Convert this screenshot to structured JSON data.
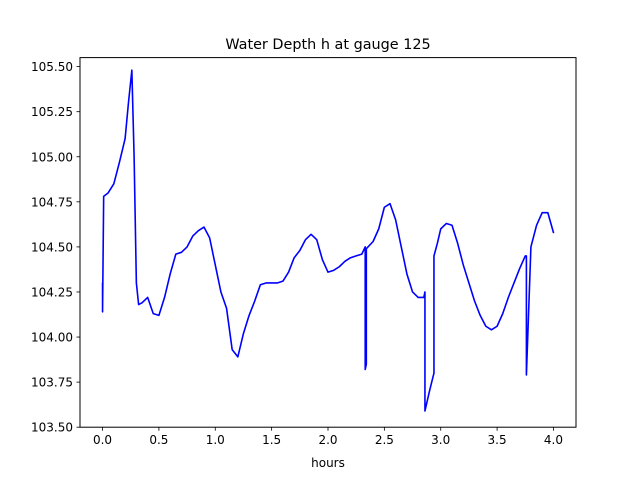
{
  "chart_data": {
    "type": "line",
    "title": "Water Depth h at gauge 125",
    "xlabel": "hours",
    "ylabel": "",
    "xlim": [
      -0.2,
      4.2
    ],
    "ylim": [
      103.5,
      105.55
    ],
    "xticks": [
      0.0,
      0.5,
      1.0,
      1.5,
      2.0,
      2.5,
      3.0,
      3.5,
      4.0
    ],
    "xtick_labels": [
      "0.0",
      "0.5",
      "1.0",
      "1.5",
      "2.0",
      "2.5",
      "3.0",
      "3.5",
      "4.0"
    ],
    "yticks": [
      103.5,
      103.75,
      104.0,
      104.25,
      104.5,
      104.75,
      105.0,
      105.25,
      105.5
    ],
    "ytick_labels": [
      "103.50",
      "103.75",
      "104.00",
      "104.25",
      "104.50",
      "104.75",
      "105.00",
      "105.25",
      "105.50"
    ],
    "grid": false,
    "series": [
      {
        "color": "#0000ff",
        "x": [
          0.0,
          0.0,
          0.01,
          0.05,
          0.1,
          0.15,
          0.2,
          0.23,
          0.26,
          0.28,
          0.3,
          0.32,
          0.35,
          0.4,
          0.45,
          0.5,
          0.55,
          0.6,
          0.65,
          0.7,
          0.75,
          0.8,
          0.85,
          0.9,
          0.95,
          1.0,
          1.05,
          1.1,
          1.15,
          1.2,
          1.25,
          1.3,
          1.35,
          1.4,
          1.45,
          1.5,
          1.55,
          1.6,
          1.65,
          1.7,
          1.75,
          1.8,
          1.85,
          1.9,
          1.95,
          2.0,
          2.05,
          2.1,
          2.15,
          2.2,
          2.25,
          2.3,
          2.33,
          2.33,
          2.34,
          2.34,
          2.4,
          2.45,
          2.5,
          2.55,
          2.6,
          2.65,
          2.7,
          2.75,
          2.8,
          2.85,
          2.86,
          2.86,
          2.9,
          2.94,
          2.94,
          2.97,
          3.0,
          3.05,
          3.1,
          3.15,
          3.2,
          3.25,
          3.3,
          3.35,
          3.4,
          3.45,
          3.5,
          3.55,
          3.6,
          3.65,
          3.7,
          3.75,
          3.76,
          3.76,
          3.8,
          3.85,
          3.9,
          3.95,
          4.0
        ],
        "y": [
          104.3,
          104.14,
          104.78,
          104.8,
          104.85,
          104.97,
          105.1,
          105.3,
          105.48,
          105.0,
          104.3,
          104.18,
          104.19,
          104.22,
          104.13,
          104.12,
          104.22,
          104.35,
          104.46,
          104.47,
          104.5,
          104.56,
          104.59,
          104.61,
          104.55,
          104.4,
          104.25,
          104.16,
          103.93,
          103.89,
          104.02,
          104.12,
          104.2,
          104.29,
          104.3,
          104.3,
          104.3,
          104.31,
          104.36,
          104.44,
          104.48,
          104.54,
          104.57,
          104.54,
          104.43,
          104.36,
          104.37,
          104.39,
          104.42,
          104.44,
          104.45,
          104.46,
          104.5,
          103.82,
          103.85,
          104.49,
          104.53,
          104.6,
          104.72,
          104.74,
          104.65,
          104.5,
          104.35,
          104.25,
          104.22,
          104.22,
          104.25,
          103.59,
          103.7,
          103.8,
          104.45,
          104.52,
          104.6,
          104.63,
          104.62,
          104.52,
          104.4,
          104.3,
          104.2,
          104.12,
          104.06,
          104.04,
          104.06,
          104.13,
          104.22,
          104.3,
          104.38,
          104.45,
          104.45,
          103.79,
          104.5,
          104.62,
          104.69,
          104.69,
          104.58
        ]
      }
    ]
  }
}
